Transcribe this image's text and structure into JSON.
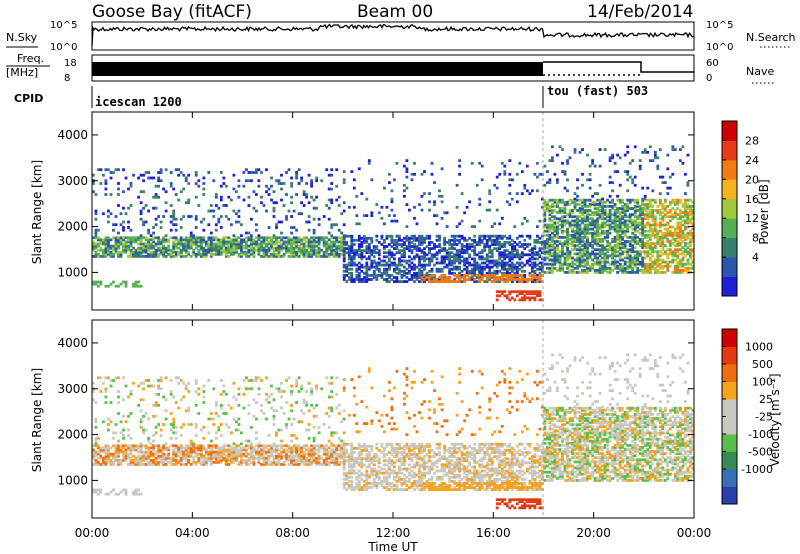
{
  "header": {
    "station": "Goose Bay (fitACF)",
    "beam": "Beam 00",
    "date": "14/Feb/2014"
  },
  "top_panels": {
    "nsky_label": "N.Sky",
    "nsky_ticks": [
      "10^5",
      "10^0"
    ],
    "nsearch_label": "N.Search",
    "freq_label_1": "Freq.",
    "freq_label_2": "[MHz]",
    "freq_ticks": [
      "18",
      "8"
    ],
    "nave_label": "Nave",
    "nave_ticks": [
      "60",
      "0"
    ],
    "cpid_label": "CPID",
    "cpid_segments": [
      {
        "name": "icescan 1200",
        "start_h": 0,
        "end_h": 18
      },
      {
        "name": "tou (fast) 503",
        "start_h": 18,
        "end_h": 24
      }
    ]
  },
  "chart_data": [
    {
      "type": "heatmap",
      "title": "Power",
      "ylabel": "Slant Range [km]",
      "xlabel": "Time UT",
      "xlim": [
        0,
        24
      ],
      "ylim": [
        180,
        4500
      ],
      "y_ticks": [
        "1000",
        "2000",
        "3000",
        "4000"
      ],
      "x_ticks": [
        "00:00",
        "04:00",
        "08:00",
        "12:00",
        "16:00",
        "20:00",
        "00:00"
      ],
      "colorbar_label": "Power [dB]",
      "colorbar_ticks": [
        "4",
        "8",
        "12",
        "16",
        "20",
        "24",
        "28"
      ],
      "colorbar_colors": [
        "#1f1fd8",
        "#2a56b0",
        "#3a7f6e",
        "#55b055",
        "#9fc83a",
        "#f5b41f",
        "#f27a12",
        "#e63b1a",
        "#cc0000"
      ]
    },
    {
      "type": "heatmap",
      "title": "Velocity",
      "ylabel": "Slant Range [km]",
      "xlabel": "Time UT",
      "xlim": [
        0,
        24
      ],
      "ylim": [
        180,
        4500
      ],
      "y_ticks": [
        "1000",
        "2000",
        "3000",
        "4000"
      ],
      "x_ticks": [
        "00:00",
        "04:00",
        "08:00",
        "12:00",
        "16:00",
        "20:00",
        "00:00"
      ],
      "colorbar_label": "Velocity [m s⁻¹]",
      "colorbar_ticks": [
        "1000",
        "500",
        "100",
        "25",
        "-25",
        "-100",
        "-500",
        "-1000"
      ],
      "colorbar_colors": [
        "#2a3fa8",
        "#3b6fb5",
        "#3a8a55",
        "#58c04a",
        "#c8c8c0",
        "#c8c8c0",
        "#f5a21f",
        "#f06e12",
        "#e23a12",
        "#d10000"
      ]
    }
  ]
}
